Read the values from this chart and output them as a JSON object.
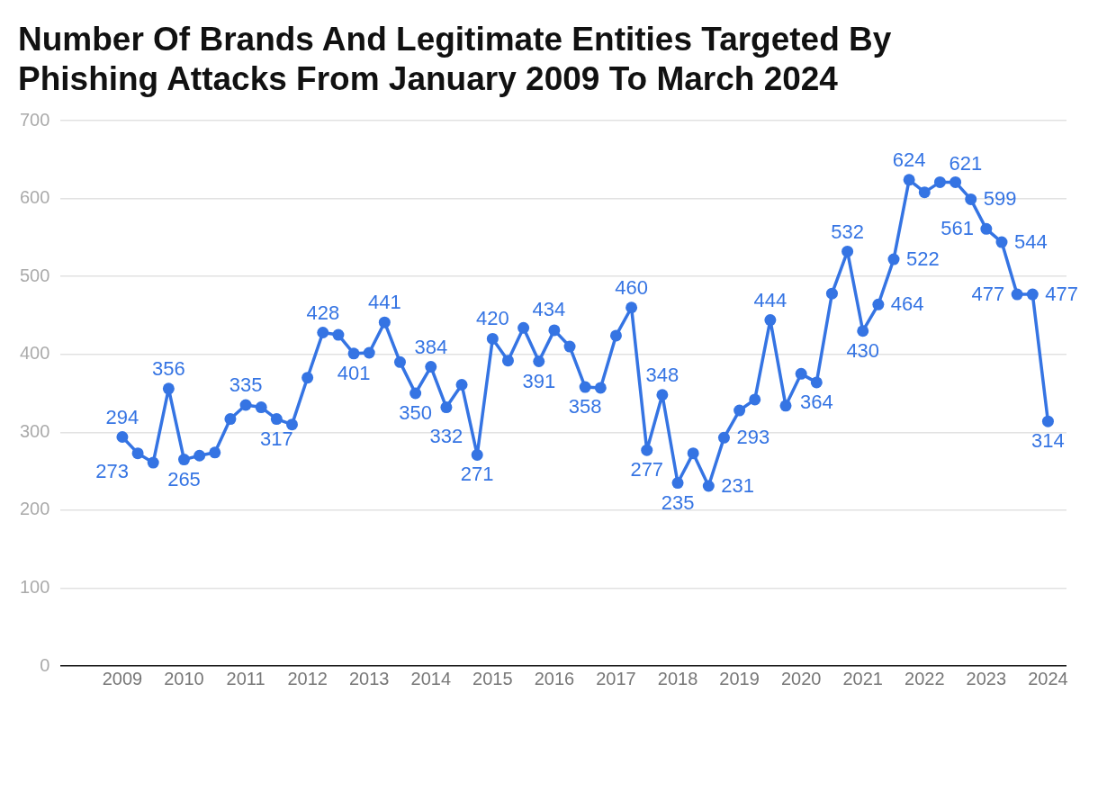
{
  "chart_data": {
    "type": "line",
    "title": "Number Of Brands And Legitimate Entities Targeted By Phishing Attacks From January 2009 To March 2024",
    "x": [
      2009,
      2009.25,
      2009.5,
      2009.75,
      2010,
      2010.25,
      2010.5,
      2010.75,
      2011,
      2011.25,
      2011.5,
      2011.75,
      2012,
      2012.25,
      2012.5,
      2012.75,
      2013,
      2013.25,
      2013.5,
      2013.75,
      2014,
      2014.25,
      2014.5,
      2014.75,
      2015,
      2015.25,
      2015.5,
      2015.75,
      2016,
      2016.25,
      2016.5,
      2016.75,
      2017,
      2017.25,
      2017.5,
      2017.75,
      2018,
      2018.25,
      2018.5,
      2018.75,
      2019,
      2019.25,
      2019.5,
      2019.75,
      2020,
      2020.25,
      2020.5,
      2020.75,
      2021,
      2021.25,
      2021.5,
      2021.75,
      2022,
      2022.25,
      2022.5,
      2022.75,
      2023,
      2023.25,
      2023.5,
      2023.75,
      2024
    ],
    "series": [
      {
        "color": "#3574e3",
        "values": [
          294,
          273,
          261,
          356,
          265,
          270,
          274,
          317,
          335,
          332,
          317,
          310,
          370,
          428,
          425,
          401,
          402,
          441,
          390,
          350,
          384,
          332,
          361,
          271,
          420,
          392,
          434,
          391,
          431,
          410,
          358,
          357,
          424,
          460,
          277,
          348,
          235,
          273,
          231,
          293,
          328,
          342,
          444,
          334,
          375,
          364,
          478,
          532,
          430,
          464,
          522,
          624,
          608,
          621,
          621,
          599,
          561,
          544,
          477,
          477,
          314
        ],
        "value_labels": [
          "294",
          "273",
          null,
          "356",
          "265",
          null,
          null,
          null,
          "335",
          null,
          "317",
          null,
          null,
          "428",
          null,
          "401",
          null,
          "441",
          null,
          "350",
          "384",
          "332",
          null,
          "271",
          "420",
          null,
          "434",
          "391",
          null,
          null,
          "358",
          null,
          null,
          "460",
          "277",
          "348",
          "235",
          null,
          "231",
          "293",
          null,
          null,
          "444",
          null,
          null,
          "364",
          null,
          "532",
          "430",
          "464",
          "522",
          "624",
          null,
          "621",
          null,
          "599",
          "561",
          "544",
          "477",
          "477",
          "314"
        ]
      }
    ],
    "xlim": [
      2008,
      2024.3
    ],
    "xticks": [
      2009,
      2010,
      2011,
      2012,
      2013,
      2014,
      2015,
      2016,
      2017,
      2018,
      2019,
      2020,
      2021,
      2022,
      2023,
      2024
    ],
    "ylim": [
      0,
      700
    ],
    "yticks": [
      0,
      100,
      200,
      300,
      400,
      500,
      600,
      700
    ],
    "grid": "y",
    "legend": false,
    "marker": "circle",
    "line_style": "solid"
  }
}
